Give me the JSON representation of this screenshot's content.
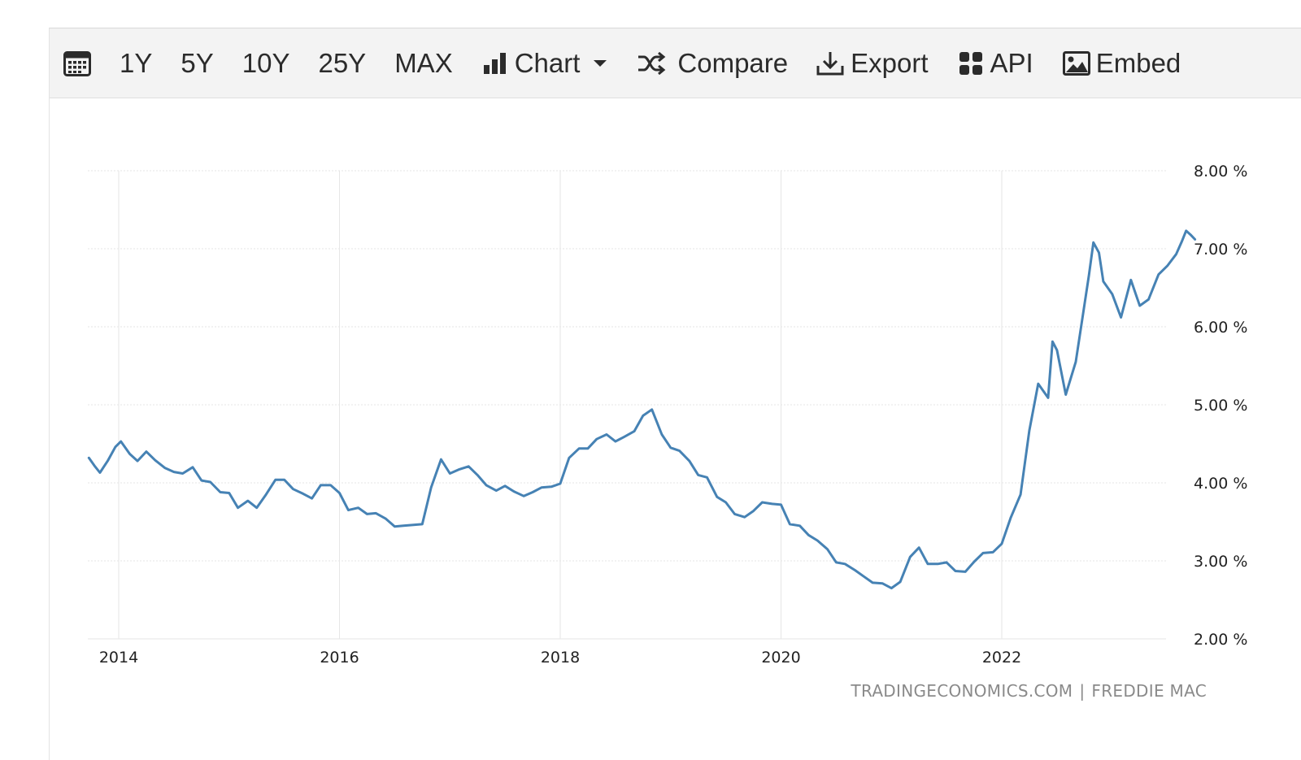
{
  "toolbar": {
    "calendar_icon": "calendar-icon",
    "ranges": [
      "1Y",
      "5Y",
      "10Y",
      "25Y",
      "MAX"
    ],
    "chart_label": "Chart",
    "compare_label": "Compare",
    "export_label": "Export",
    "api_label": "API",
    "embed_label": "Embed"
  },
  "footer": {
    "source_left": "TRADINGECONOMICS.COM",
    "separator": "|",
    "source_right": "FREDDIE MAC"
  },
  "colors": {
    "line": "#4682b4",
    "grid": "#e6e6e6",
    "axis_text": "#222222"
  },
  "chart_data": {
    "type": "line",
    "title": "",
    "xlabel": "",
    "ylabel": "",
    "x_ticks": [
      "2014",
      "2016",
      "2018",
      "2020",
      "2022"
    ],
    "y_ticks": [
      "2.00 %",
      "3.00 %",
      "4.00 %",
      "5.00 %",
      "6.00 %",
      "7.00 %",
      "8.00 %"
    ],
    "ylim": [
      2,
      8
    ],
    "xlim": [
      2013.73,
      2023.75
    ],
    "grid": true,
    "series": [
      {
        "values": [
          [
            2013.73,
            4.32
          ],
          [
            2013.78,
            4.22
          ],
          [
            2013.83,
            4.13
          ],
          [
            2013.9,
            4.28
          ],
          [
            2013.97,
            4.46
          ],
          [
            2014.02,
            4.53
          ],
          [
            2014.1,
            4.37
          ],
          [
            2014.17,
            4.28
          ],
          [
            2014.25,
            4.4
          ],
          [
            2014.33,
            4.29
          ],
          [
            2014.42,
            4.19
          ],
          [
            2014.5,
            4.14
          ],
          [
            2014.58,
            4.12
          ],
          [
            2014.67,
            4.2
          ],
          [
            2014.75,
            4.03
          ],
          [
            2014.83,
            4.01
          ],
          [
            2014.92,
            3.88
          ],
          [
            2015.0,
            3.87
          ],
          [
            2015.08,
            3.68
          ],
          [
            2015.17,
            3.77
          ],
          [
            2015.25,
            3.68
          ],
          [
            2015.33,
            3.84
          ],
          [
            2015.42,
            4.04
          ],
          [
            2015.5,
            4.04
          ],
          [
            2015.58,
            3.92
          ],
          [
            2015.67,
            3.86
          ],
          [
            2015.75,
            3.8
          ],
          [
            2015.83,
            3.97
          ],
          [
            2015.92,
            3.97
          ],
          [
            2016.0,
            3.87
          ],
          [
            2016.08,
            3.65
          ],
          [
            2016.17,
            3.68
          ],
          [
            2016.25,
            3.6
          ],
          [
            2016.33,
            3.61
          ],
          [
            2016.42,
            3.54
          ],
          [
            2016.5,
            3.44
          ],
          [
            2016.58,
            3.45
          ],
          [
            2016.67,
            3.46
          ],
          [
            2016.75,
            3.47
          ],
          [
            2016.83,
            3.94
          ],
          [
            2016.92,
            4.3
          ],
          [
            2017.0,
            4.12
          ],
          [
            2017.08,
            4.17
          ],
          [
            2017.17,
            4.21
          ],
          [
            2017.25,
            4.1
          ],
          [
            2017.33,
            3.97
          ],
          [
            2017.42,
            3.9
          ],
          [
            2017.5,
            3.96
          ],
          [
            2017.58,
            3.89
          ],
          [
            2017.67,
            3.83
          ],
          [
            2017.75,
            3.88
          ],
          [
            2017.83,
            3.94
          ],
          [
            2017.92,
            3.95
          ],
          [
            2018.0,
            3.99
          ],
          [
            2018.08,
            4.32
          ],
          [
            2018.17,
            4.44
          ],
          [
            2018.25,
            4.44
          ],
          [
            2018.33,
            4.56
          ],
          [
            2018.42,
            4.62
          ],
          [
            2018.5,
            4.53
          ],
          [
            2018.58,
            4.59
          ],
          [
            2018.67,
            4.66
          ],
          [
            2018.75,
            4.86
          ],
          [
            2018.83,
            4.94
          ],
          [
            2018.92,
            4.62
          ],
          [
            2019.0,
            4.45
          ],
          [
            2019.08,
            4.41
          ],
          [
            2019.17,
            4.28
          ],
          [
            2019.25,
            4.1
          ],
          [
            2019.33,
            4.07
          ],
          [
            2019.42,
            3.82
          ],
          [
            2019.5,
            3.75
          ],
          [
            2019.58,
            3.6
          ],
          [
            2019.67,
            3.56
          ],
          [
            2019.75,
            3.64
          ],
          [
            2019.83,
            3.75
          ],
          [
            2019.92,
            3.73
          ],
          [
            2020.0,
            3.72
          ],
          [
            2020.08,
            3.47
          ],
          [
            2020.17,
            3.45
          ],
          [
            2020.25,
            3.33
          ],
          [
            2020.33,
            3.26
          ],
          [
            2020.42,
            3.15
          ],
          [
            2020.5,
            2.98
          ],
          [
            2020.58,
            2.96
          ],
          [
            2020.67,
            2.88
          ],
          [
            2020.75,
            2.8
          ],
          [
            2020.83,
            2.72
          ],
          [
            2020.92,
            2.71
          ],
          [
            2021.0,
            2.65
          ],
          [
            2021.08,
            2.73
          ],
          [
            2021.17,
            3.05
          ],
          [
            2021.25,
            3.17
          ],
          [
            2021.33,
            2.96
          ],
          [
            2021.42,
            2.96
          ],
          [
            2021.5,
            2.98
          ],
          [
            2021.58,
            2.87
          ],
          [
            2021.67,
            2.86
          ],
          [
            2021.75,
            2.99
          ],
          [
            2021.83,
            3.1
          ],
          [
            2021.92,
            3.11
          ],
          [
            2022.0,
            3.22
          ],
          [
            2022.08,
            3.55
          ],
          [
            2022.17,
            3.85
          ],
          [
            2022.25,
            4.67
          ],
          [
            2022.33,
            5.27
          ],
          [
            2022.42,
            5.09
          ],
          [
            2022.46,
            5.81
          ],
          [
            2022.5,
            5.7
          ],
          [
            2022.58,
            5.13
          ],
          [
            2022.67,
            5.55
          ],
          [
            2022.75,
            6.29
          ],
          [
            2022.79,
            6.66
          ],
          [
            2022.83,
            7.08
          ],
          [
            2022.88,
            6.95
          ],
          [
            2022.92,
            6.58
          ],
          [
            2023.0,
            6.42
          ],
          [
            2023.08,
            6.12
          ],
          [
            2023.17,
            6.6
          ],
          [
            2023.25,
            6.27
          ],
          [
            2023.33,
            6.35
          ],
          [
            2023.42,
            6.67
          ],
          [
            2023.5,
            6.78
          ],
          [
            2023.58,
            6.93
          ],
          [
            2023.63,
            7.09
          ],
          [
            2023.67,
            7.23
          ],
          [
            2023.71,
            7.18
          ],
          [
            2023.75,
            7.12
          ]
        ]
      }
    ]
  }
}
